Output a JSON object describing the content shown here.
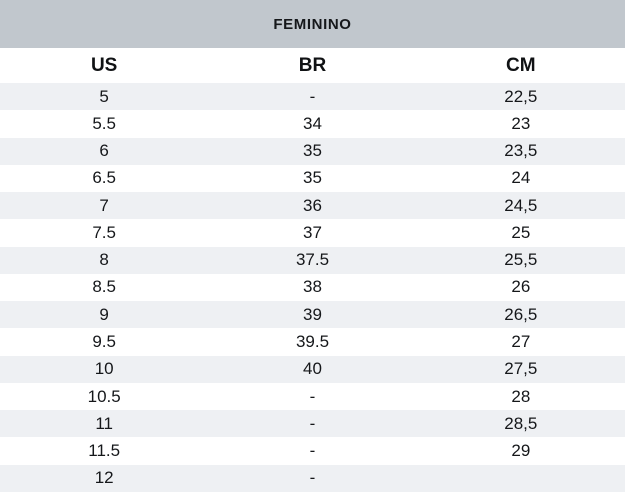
{
  "chart_data": {
    "type": "table",
    "title": "FEMININO",
    "columns": [
      "US",
      "BR",
      "CM"
    ],
    "rows": [
      [
        "5",
        "-",
        "22,5"
      ],
      [
        "5.5",
        "34",
        "23"
      ],
      [
        "6",
        "35",
        "23,5"
      ],
      [
        "6.5",
        "35",
        "24"
      ],
      [
        "7",
        "36",
        "24,5"
      ],
      [
        "7.5",
        "37",
        "25"
      ],
      [
        "8",
        "37.5",
        "25,5"
      ],
      [
        "8.5",
        "38",
        "26"
      ],
      [
        "9",
        "39",
        "26,5"
      ],
      [
        "9.5",
        "39.5",
        "27"
      ],
      [
        "10",
        "40",
        "27,5"
      ],
      [
        "10.5",
        "-",
        "28"
      ],
      [
        "11",
        "-",
        "28,5"
      ],
      [
        "11.5",
        "-",
        "29"
      ],
      [
        "12",
        "-",
        ""
      ]
    ],
    "layout": {
      "striped": true,
      "stripe_start": "first-data-row",
      "alignment": "center"
    }
  },
  "colors": {
    "band": "#c1c7cd",
    "stripe": "#eef0f3",
    "text": "#131313"
  }
}
